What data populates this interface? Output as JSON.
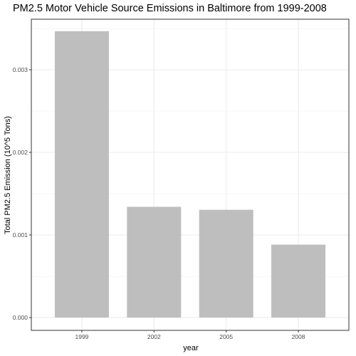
{
  "chart_data": {
    "type": "bar",
    "title": "PM2.5 Motor Vehicle Source Emissions in Baltimore from 1999-2008",
    "xlabel": "year",
    "ylabel": "Total PM2.5 Emission (10^5 Tons)",
    "categories": [
      "1999",
      "2002",
      "2005",
      "2008"
    ],
    "values": [
      0.003467,
      0.001341,
      0.001305,
      0.000883
    ],
    "ylim": [
      0,
      0.0036
    ],
    "yticks": [
      0,
      0.001,
      0.002,
      0.003
    ],
    "ytick_labels": [
      "0.000",
      "0.001",
      "0.002",
      "0.003"
    ],
    "grid": true,
    "bar_color": "#bebebe",
    "grid_color": "#ebebeb",
    "panel_border_color": "#333333"
  }
}
